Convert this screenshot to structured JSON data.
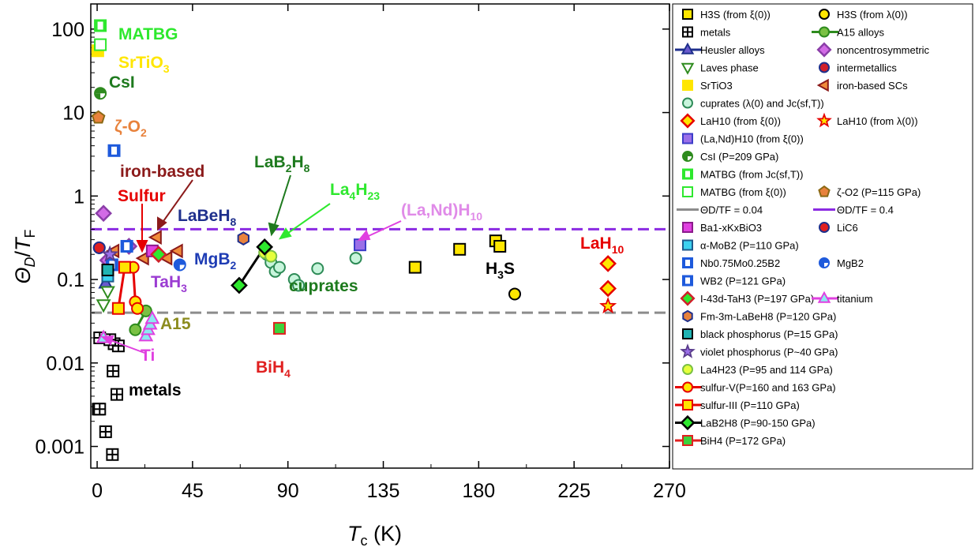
{
  "chart_data": {
    "type": "scatter",
    "xlabel": "T_c (K)",
    "ylabel": "Θ_D/T_F",
    "x_ticks": [
      "0",
      "45",
      "90",
      "135",
      "180",
      "225",
      "270"
    ],
    "y_ticks": [
      "0.001",
      "0.01",
      "0.1",
      "1",
      "10",
      "100"
    ],
    "xlim": [
      -3,
      270
    ],
    "ylim": [
      0.00055,
      200
    ],
    "y_scale": "log",
    "reference_lines": [
      {
        "name": "Θ_D/T_F = 0.04",
        "y": 0.04,
        "color": "#8c8c8c",
        "style": "dashed"
      },
      {
        "name": "Θ_D/T_F = 0.4",
        "y": 0.4,
        "color": "#8b2be2",
        "style": "dashed"
      }
    ],
    "series": [
      {
        "name": "H3S (from ξ(0))",
        "marker": "square",
        "fill": "#ffe600",
        "stroke": "#000000",
        "points": [
          [
            150,
            0.14
          ],
          [
            171,
            0.23
          ],
          [
            188,
            0.29
          ],
          [
            190,
            0.25
          ]
        ]
      },
      {
        "name": "H3S (from λ(0))",
        "marker": "circle",
        "fill": "#ffe600",
        "stroke": "#000000",
        "points": [
          [
            197,
            0.067
          ]
        ]
      },
      {
        "name": "metals",
        "marker": "grid-square",
        "fill": "#ffffff",
        "stroke": "#000000",
        "points": [
          [
            0.5,
            0.0028
          ],
          [
            1.2,
            0.0028
          ],
          [
            4,
            0.0015
          ],
          [
            7.2,
            0.0008
          ],
          [
            8,
            0.017
          ],
          [
            10,
            0.016
          ],
          [
            7.5,
            0.008
          ],
          [
            9.3,
            0.0042
          ],
          [
            1.2,
            0.02
          ],
          [
            6,
            0.019
          ]
        ]
      },
      {
        "name": "A15 alloys",
        "marker": "circle",
        "fill": "#7ac143",
        "stroke": "#2e8b1e",
        "points": [
          [
            18,
            0.025
          ],
          [
            23,
            0.042
          ]
        ]
      },
      {
        "name": "Heusler alloys",
        "marker": "triangle-up",
        "fill": "#6a5acd",
        "stroke": "#1e2f8c",
        "points": [
          [
            4,
            0.09
          ]
        ]
      },
      {
        "name": "noncentrosymmetric",
        "marker": "diamond",
        "fill": "#d26be6",
        "stroke": "#8b3ea8",
        "points": [
          [
            3,
            0.62
          ],
          [
            5,
            0.17
          ],
          [
            15,
            0.25
          ]
        ]
      },
      {
        "name": "Laves phase",
        "marker": "triangle-down",
        "fill": "#ffffff",
        "stroke": "#2e8b1e",
        "points": [
          [
            3,
            0.05
          ],
          [
            5,
            0.072
          ]
        ]
      },
      {
        "name": "intermetallics",
        "marker": "circle",
        "fill": "#d0202a",
        "stroke": "#1e2f8c",
        "points": [
          [
            1,
            0.24
          ]
        ]
      },
      {
        "name": "SrTiO3",
        "marker": "square",
        "fill": "#ffe600",
        "stroke": "#ffe600",
        "points": [
          [
            0.3,
            55
          ]
        ]
      },
      {
        "name": "iron-based SCs",
        "marker": "triangle-left",
        "fill": "#f08c3c",
        "stroke": "#8b1a1a",
        "points": [
          [
            8,
            0.22
          ],
          [
            22,
            0.18
          ],
          [
            28,
            0.32
          ],
          [
            33,
            0.18
          ],
          [
            38,
            0.22
          ]
        ]
      },
      {
        "name": "cuprates (λ(0) and Jc(sf,T))",
        "marker": "circle",
        "fill": "#c8f5dc",
        "stroke": "#2e8b57",
        "points": [
          [
            80,
            0.2
          ],
          [
            82,
            0.16
          ],
          [
            84,
            0.125
          ],
          [
            86,
            0.14
          ],
          [
            93,
            0.1
          ],
          [
            95,
            0.085
          ],
          [
            104,
            0.135
          ],
          [
            122,
            0.18
          ]
        ]
      },
      {
        "name": "LaH10 (from ξ(0))",
        "marker": "diamond",
        "fill": "#ffe600",
        "stroke": "#e60000",
        "points": [
          [
            241,
            0.155
          ],
          [
            241,
            0.078
          ]
        ]
      },
      {
        "name": "LaH10 (from λ(0))",
        "marker": "star",
        "fill": "#ffe600",
        "stroke": "#e60000",
        "points": [
          [
            241,
            0.048
          ]
        ]
      },
      {
        "name": "(La,Nd)H10 (from ξ(0))",
        "marker": "square",
        "fill": "#9b6fe8",
        "stroke": "#3c3cc8",
        "points": [
          [
            124,
            0.26
          ]
        ]
      },
      {
        "name": "CsI (P=209 GPa)",
        "marker": "half-circle",
        "fill": "#2e8b1e",
        "stroke": "#2e8b1e",
        "points": [
          [
            1.5,
            17
          ]
        ]
      },
      {
        "name": "MATBG (from Jc(sf,T))",
        "marker": "half-square",
        "fill": "#2ee82e",
        "stroke": "#2ee82e",
        "points": [
          [
            1.5,
            110
          ]
        ]
      },
      {
        "name": "MATBG (from ξ(0))",
        "marker": "square",
        "fill": "#ffffff",
        "stroke": "#2ee82e",
        "points": [
          [
            1.5,
            65
          ]
        ]
      },
      {
        "name": "ζ-O2 (P=115 GPa)",
        "marker": "pentagon",
        "fill": "#e8823c",
        "stroke": "#8b6914",
        "points": [
          [
            0.6,
            8.7
          ]
        ]
      },
      {
        "name": "Ba1-xKxBiO3",
        "marker": "square",
        "fill": "#e040e0",
        "stroke": "#8b1a8b",
        "points": [
          [
            26,
            0.22
          ]
        ]
      },
      {
        "name": "LiC6",
        "marker": "circle",
        "fill": "#e02020",
        "stroke": "#1e2f8c",
        "points": [
          [
            1,
            0.24
          ]
        ]
      },
      {
        "name": "α-MoB2 (P=110 GPa)",
        "marker": "square",
        "fill": "#3cd2f0",
        "stroke": "#1e5a8c",
        "points": [
          [
            5,
            0.11
          ]
        ]
      },
      {
        "name": "Nb0.75Mo0.25B2",
        "marker": "half-square",
        "fill": "#1e5adc",
        "stroke": "#1e5adc",
        "points": [
          [
            7,
            0.15
          ]
        ]
      },
      {
        "name": "MgB2",
        "marker": "half-circle",
        "fill": "#1e5adc",
        "stroke": "#1e5adc",
        "points": [
          [
            39,
            0.15
          ]
        ]
      },
      {
        "name": "WB2 (P=121 GPa)",
        "marker": "half-square",
        "fill": "#1e5adc",
        "stroke": "#1e5adc",
        "points": [
          [
            8,
            3.5
          ],
          [
            14,
            0.25
          ]
        ]
      },
      {
        "name": "I-43d-TaH3 (P=197 GPa)",
        "marker": "diamond",
        "fill": "#2ee82e",
        "stroke": "#d0202a",
        "points": [
          [
            29,
            0.2
          ]
        ]
      },
      {
        "name": "titanium",
        "marker": "triangle-up",
        "fill": "#8ce8f0",
        "stroke": "#e040e0",
        "points": [
          [
            3,
            0.02
          ],
          [
            23,
            0.021
          ],
          [
            24,
            0.025
          ],
          [
            25,
            0.029
          ],
          [
            26,
            0.034
          ]
        ]
      },
      {
        "name": "Fm-3m-LaBeH8 (P=120 GPa)",
        "marker": "hexagon",
        "fill": "#e8823c",
        "stroke": "#1e2f8c",
        "points": [
          [
            69,
            0.31
          ]
        ]
      },
      {
        "name": "black phosphorus (P=15 GPa)",
        "marker": "square",
        "fill": "#20b4b4",
        "stroke": "#000000",
        "points": [
          [
            5,
            0.13
          ]
        ]
      },
      {
        "name": "violet phosphorus (P~40 GPa)",
        "marker": "star",
        "fill": "#9b6fe8",
        "stroke": "#5a3c8c",
        "points": [
          [
            6,
            0.2
          ]
        ]
      },
      {
        "name": "La4H23 (P=95 and 114 GPa)",
        "marker": "circle",
        "fill": "#e6ff3c",
        "stroke": "#7ac143",
        "points": [
          [
            79,
            0.21
          ],
          [
            82,
            0.19
          ]
        ]
      },
      {
        "name": "sulfur-V(P=160 and 163 GPa)",
        "marker": "circle",
        "fill": "#ffe600",
        "stroke": "#e60000",
        "points": [
          [
            17,
            0.14
          ],
          [
            18,
            0.054
          ],
          [
            19,
            0.045
          ]
        ]
      },
      {
        "name": "sulfur-III (P=110 GPa)",
        "marker": "square",
        "fill": "#ffe600",
        "stroke": "#e60000",
        "points": [
          [
            10,
            0.045
          ],
          [
            13,
            0.14
          ]
        ]
      },
      {
        "name": "LaB2H8 (P=90-150 GPa)",
        "marker": "diamond",
        "fill": "#2ee82e",
        "stroke": "#000000",
        "points": [
          [
            67,
            0.085
          ],
          [
            79,
            0.245
          ]
        ]
      },
      {
        "name": "BiH4 (P=172 GPa)",
        "marker": "square",
        "fill": "#3cd23c",
        "stroke": "#e02020",
        "points": [
          [
            86,
            0.026
          ]
        ]
      }
    ],
    "annotations": [
      {
        "text": "MATBG",
        "color": "#2ee82e"
      },
      {
        "text": "SrTiO3",
        "color": "#ffe600"
      },
      {
        "text": "CsI",
        "color": "#1e7a1e"
      },
      {
        "text": "ζ-O2",
        "color": "#e8823c"
      },
      {
        "text": "iron-based",
        "color": "#8b1a1a"
      },
      {
        "text": "Sulfur",
        "color": "#e60000"
      },
      {
        "text": "LaBeH8",
        "color": "#1e2f8c"
      },
      {
        "text": "LaB2H8",
        "color": "#1e7a1e"
      },
      {
        "text": "La4H23",
        "color": "#2ee82e"
      },
      {
        "text": "(La,Nd)H10",
        "color": "#e040e0"
      },
      {
        "text": "LaH10",
        "color": "#e60000"
      },
      {
        "text": "H3S",
        "color": "#000000"
      },
      {
        "text": "MgB2",
        "color": "#1e3cb4"
      },
      {
        "text": "TaH3",
        "color": "#9b3cd2"
      },
      {
        "text": "cuprates",
        "color": "#1e7a1e"
      },
      {
        "text": "A15",
        "color": "#8c8c1e"
      },
      {
        "text": "Ti",
        "color": "#e040e0"
      },
      {
        "text": "BiH4",
        "color": "#e02020"
      },
      {
        "text": "metals",
        "color": "#000000"
      }
    ],
    "legend": {
      "placement": "right",
      "entries": [
        "H3S (from ξ(0))",
        "H3S (from λ(0))",
        "metals",
        "A15 alloys",
        "Heusler alloys",
        "noncentrosymmetric",
        "Laves phase",
        "intermetallics",
        "SrTiO3",
        "iron-based SCs",
        "cuprates (λ(0) and Jc(sf,T))",
        "LaH10 (from ξ(0))",
        "LaH10 (from λ(0))",
        "(La,Nd)H10 (from ξ(0))",
        "CsI (P=209 GPa)",
        "MATBG (from Jc(sf,T))",
        "MATBG (from ξ(0))",
        "ζ-O2 (P=115 GPa)",
        "ΘD/TF = 0.04",
        "ΘD/TF = 0.4",
        "Ba1-xKxBiO3",
        "LiC6",
        "α-MoB2 (P=110 GPa)",
        "Nb0.75Mo0.25B2",
        "MgB2",
        "WB2 (P=121 GPa)",
        "I-43d-TaH3 (P=197 GPa)",
        "titanium",
        "Fm-3m-LaBeH8 (P=120 GPa)",
        "black phosphorus (P=15 GPa)",
        "violet phosphorus (P~40 GPa)",
        "La4H23 (P=95 and 114 GPa)",
        "sulfur-V(P=160 and 163 GPa)",
        "sulfur-III (P=110 GPa)",
        "LaB2H8 (P=90-150 GPa)",
        "BiH4 (P=172 GPa)"
      ]
    }
  }
}
